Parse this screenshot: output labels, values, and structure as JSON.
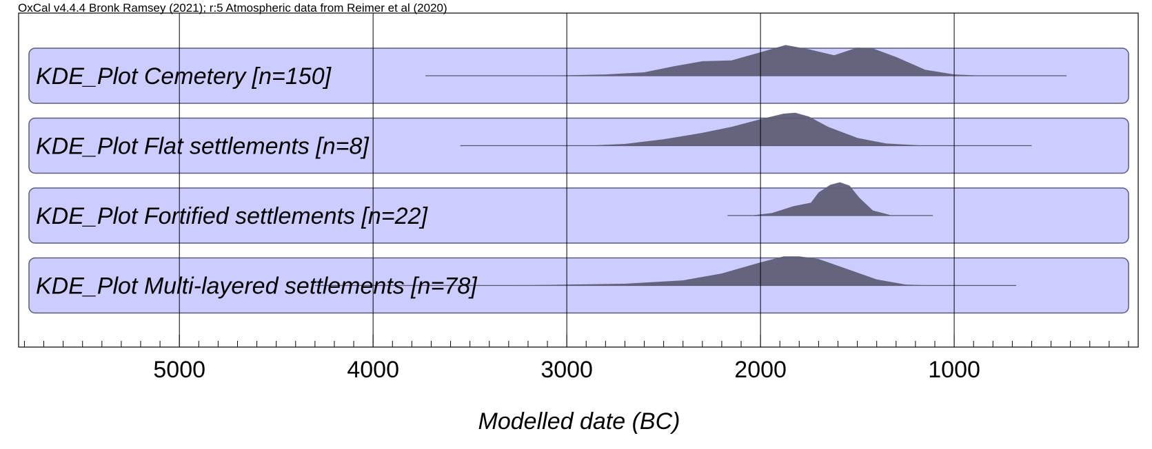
{
  "header_text": "OxCal v4.4.4 Bronk Ramsey (2021); r:5 Atmospheric data from Reimer et al (2020)",
  "chart_data": {
    "type": "area",
    "title": "",
    "xlabel": "Modelled date (BC)",
    "ylabel": "",
    "xlim": [
      5830,
      50
    ],
    "x_reversed": true,
    "grid": true,
    "x_ticks": [
      5000,
      4000,
      3000,
      2000,
      1000
    ],
    "x_tick_labels": [
      "5000",
      "4000",
      "3000",
      "2000",
      "1000"
    ],
    "minor_tick_step": 100,
    "colors": {
      "band_fill": "#ccccff",
      "band_stroke": "#5a5a7a",
      "density_fill": "#5e5e78",
      "grid": "#000000"
    },
    "series": [
      {
        "name": "KDE_Plot Cemetery [n=150]",
        "range": [
          3730,
          420
        ],
        "density": [
          [
            3300,
            0.0
          ],
          [
            3000,
            0.01
          ],
          [
            2800,
            0.03
          ],
          [
            2600,
            0.08
          ],
          [
            2450,
            0.22
          ],
          [
            2300,
            0.34
          ],
          [
            2150,
            0.36
          ],
          [
            2000,
            0.55
          ],
          [
            1870,
            0.72
          ],
          [
            1750,
            0.62
          ],
          [
            1620,
            0.48
          ],
          [
            1500,
            0.66
          ],
          [
            1420,
            0.64
          ],
          [
            1300,
            0.44
          ],
          [
            1150,
            0.14
          ],
          [
            1000,
            0.03
          ],
          [
            850,
            0.0
          ]
        ]
      },
      {
        "name": "KDE_Plot Flat settlements [n=8]",
        "range": [
          3550,
          600
        ],
        "density": [
          [
            2900,
            0.0
          ],
          [
            2700,
            0.04
          ],
          [
            2500,
            0.15
          ],
          [
            2300,
            0.3
          ],
          [
            2150,
            0.44
          ],
          [
            2000,
            0.62
          ],
          [
            1880,
            0.75
          ],
          [
            1820,
            0.77
          ],
          [
            1750,
            0.68
          ],
          [
            1650,
            0.44
          ],
          [
            1500,
            0.18
          ],
          [
            1350,
            0.05
          ],
          [
            1150,
            0.0
          ]
        ]
      },
      {
        "name": "KDE_Plot Fortified settlements [n=22]",
        "range": [
          2170,
          1110
        ],
        "density": [
          [
            2050,
            0.0
          ],
          [
            1940,
            0.06
          ],
          [
            1830,
            0.22
          ],
          [
            1740,
            0.3
          ],
          [
            1700,
            0.54
          ],
          [
            1640,
            0.72
          ],
          [
            1590,
            0.78
          ],
          [
            1540,
            0.7
          ],
          [
            1490,
            0.42
          ],
          [
            1420,
            0.12
          ],
          [
            1320,
            0.0
          ]
        ]
      },
      {
        "name": "KDE_Plot Multi-layered settlements [n=78]",
        "range": [
          4300,
          680
        ],
        "density": [
          [
            3300,
            0.0
          ],
          [
            3000,
            0.02
          ],
          [
            2700,
            0.04
          ],
          [
            2400,
            0.12
          ],
          [
            2200,
            0.28
          ],
          [
            2000,
            0.54
          ],
          [
            1880,
            0.68
          ],
          [
            1800,
            0.68
          ],
          [
            1700,
            0.62
          ],
          [
            1550,
            0.38
          ],
          [
            1400,
            0.14
          ],
          [
            1250,
            0.02
          ],
          [
            1100,
            0.0
          ]
        ]
      }
    ]
  }
}
